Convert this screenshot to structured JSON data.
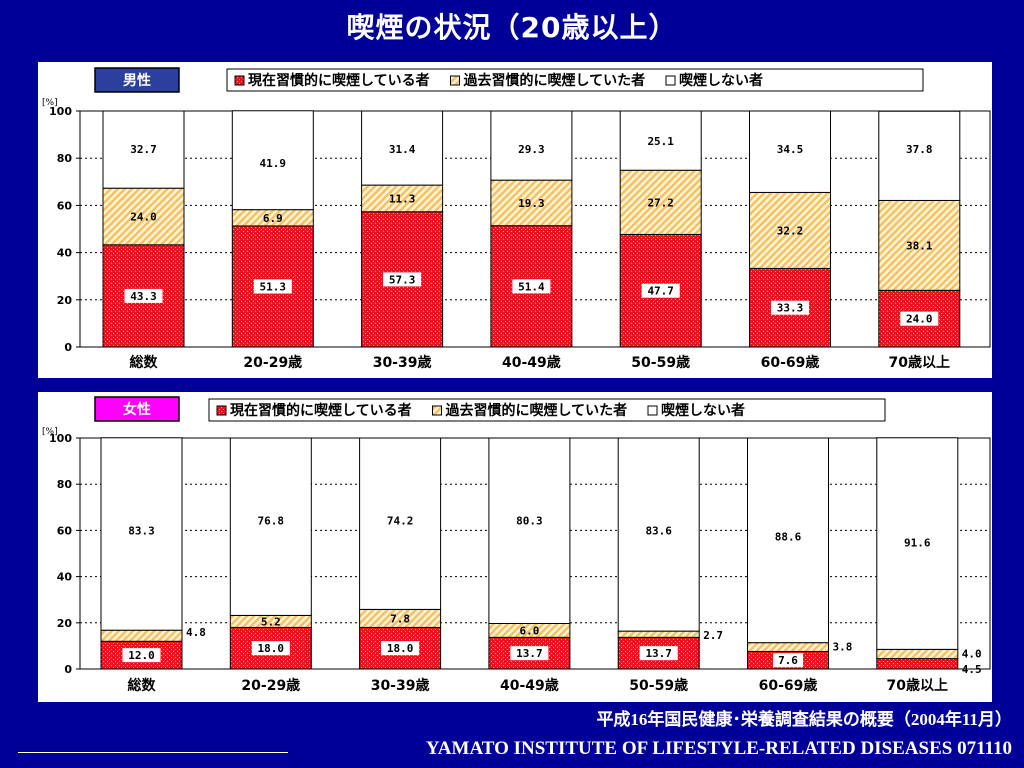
{
  "title": "喫煙の状況（20歳以上）",
  "source": "平成16年国民健康･栄養調査結果の概要（2004年11月）",
  "footer": "YAMATO INSTITUTE OF LIFESTYLE-RELATED DISEASES  071110",
  "colors": {
    "background": "#000099",
    "current": "#e8141e",
    "past": "#f5c060",
    "never": "#ffffff",
    "male_badge": "#2b3f9e",
    "female_badge": "#ff00ff"
  },
  "chart_data": [
    {
      "type": "bar",
      "stacked": true,
      "badge": "男性",
      "unit_label": "[%]",
      "ylim": [
        0,
        100
      ],
      "yticks": [
        "0",
        "20",
        "40",
        "60",
        "80",
        "100"
      ],
      "grid": "dotted",
      "legend_position": "top",
      "categories": [
        "総数",
        "20-29歳",
        "30-39歳",
        "40-49歳",
        "50-59歳",
        "60-69歳",
        "70歳以上"
      ],
      "series": [
        {
          "name": "現在習慣的に喫煙している者",
          "key": "current",
          "values": [
            43.3,
            51.3,
            57.3,
            51.4,
            47.7,
            33.3,
            24.0
          ],
          "labels": [
            "43.3",
            "51.3",
            "57.3",
            "51.4",
            "47.7",
            "33.3",
            "24.0"
          ]
        },
        {
          "name": "過去習慣的に喫煙していた者",
          "key": "past",
          "values": [
            24.0,
            6.9,
            11.3,
            19.3,
            27.2,
            32.2,
            38.1
          ],
          "labels": [
            "24.0",
            "6.9",
            "11.3",
            "19.3",
            "27.2",
            "32.2",
            "38.1"
          ]
        },
        {
          "name": "喫煙しない者",
          "key": "never",
          "values": [
            32.7,
            41.9,
            31.4,
            29.3,
            25.1,
            34.5,
            37.8
          ],
          "labels": [
            "32.7",
            "41.9",
            "31.4",
            "29.3",
            "25.1",
            "34.5",
            "37.8"
          ]
        }
      ]
    },
    {
      "type": "bar",
      "stacked": true,
      "badge": "女性",
      "unit_label": "[%]",
      "ylim": [
        0,
        100
      ],
      "yticks": [
        "0",
        "20",
        "40",
        "60",
        "80",
        "100"
      ],
      "grid": "dotted",
      "legend_position": "top",
      "categories": [
        "総数",
        "20-29歳",
        "30-39歳",
        "40-49歳",
        "50-59歳",
        "60-69歳",
        "70歳以上"
      ],
      "series": [
        {
          "name": "現在習慣的に喫煙している者",
          "key": "current",
          "values": [
            12.0,
            18.0,
            18.0,
            13.7,
            13.7,
            7.6,
            4.5
          ],
          "labels": [
            "12.0",
            "18.0",
            "18.0",
            "13.7",
            "13.7",
            "7.6",
            "4.5"
          ]
        },
        {
          "name": "過去習慣的に喫煙していた者",
          "key": "past",
          "values": [
            4.8,
            5.2,
            7.8,
            6.0,
            2.7,
            3.8,
            4.0
          ],
          "labels": [
            "4.8",
            "5.2",
            "7.8",
            "6.0",
            "2.7",
            "3.8",
            "4.0"
          ]
        },
        {
          "name": "喫煙しない者",
          "key": "never",
          "values": [
            83.3,
            76.8,
            74.2,
            80.3,
            83.6,
            88.6,
            91.6
          ],
          "labels": [
            "83.3",
            "76.8",
            "74.2",
            "80.3",
            "83.6",
            "88.6",
            "91.6"
          ]
        }
      ]
    }
  ]
}
